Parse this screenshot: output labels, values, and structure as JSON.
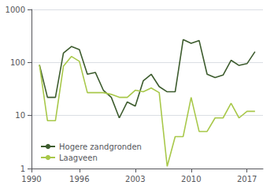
{
  "chart_data": {
    "type": "line",
    "x": [
      1991,
      1992,
      1993,
      1994,
      1995,
      1996,
      1997,
      1998,
      1999,
      2000,
      2001,
      2002,
      2003,
      2004,
      2005,
      2006,
      2007,
      2008,
      2009,
      2010,
      2011,
      2012,
      2013,
      2014,
      2015,
      2016,
      2017,
      2018
    ],
    "series": [
      {
        "name": "Hogere zandgronden",
        "color": "#3d5c2e",
        "values": [
          90,
          22,
          22,
          150,
          200,
          175,
          60,
          65,
          30,
          22,
          9,
          18,
          15,
          45,
          60,
          35,
          28,
          28,
          270,
          230,
          260,
          60,
          52,
          58,
          110,
          88,
          95,
          160
        ]
      },
      {
        "name": "Laagveen",
        "color": "#a8c84a",
        "values": [
          90,
          8,
          8,
          85,
          130,
          105,
          27,
          27,
          27,
          25,
          22,
          22,
          30,
          28,
          33,
          27,
          1.1,
          4,
          4,
          22,
          5,
          5,
          9,
          9,
          17,
          9,
          12,
          12
        ]
      }
    ],
    "xlim": [
      1990,
      2019
    ],
    "xticks": [
      1990,
      1996,
      2003,
      2010,
      2017
    ],
    "ylim": [
      1,
      1000
    ],
    "yticks": [
      1,
      10,
      100,
      1000
    ],
    "log": "y",
    "grid": true,
    "legend": "lower left"
  }
}
